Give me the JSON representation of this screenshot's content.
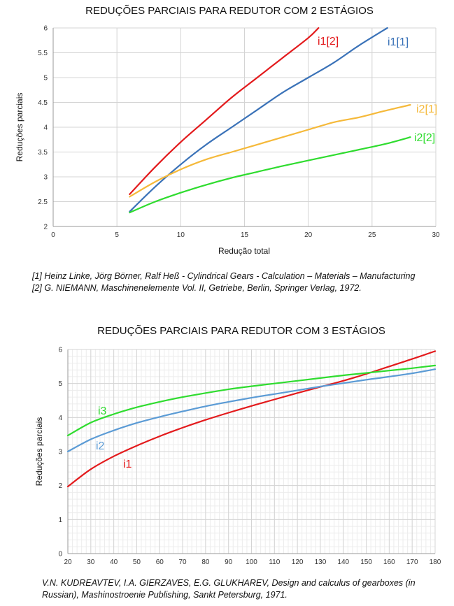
{
  "chart_data": [
    {
      "type": "line",
      "title": "REDUÇÕES PARCIAIS PARA REDUTOR COM 2 ESTÁGIOS",
      "xlabel": "Redução total",
      "ylabel": "Reduções parciais",
      "xlim": [
        0,
        30
      ],
      "ylim": [
        2,
        6
      ],
      "x_ticks": [
        0,
        5,
        10,
        15,
        20,
        25,
        30
      ],
      "y_ticks": [
        2,
        2.5,
        3,
        3.5,
        4,
        4.5,
        5,
        5.5,
        6
      ],
      "grid": "major",
      "series": [
        {
          "name": "i1[2]",
          "color": "#e31a1c",
          "x": [
            6,
            8,
            10,
            12,
            14,
            16,
            18,
            20,
            20.8
          ],
          "y": [
            2.65,
            3.2,
            3.7,
            4.15,
            4.6,
            5.0,
            5.4,
            5.8,
            6.0
          ]
        },
        {
          "name": "i1[1]",
          "color": "#3a72b8",
          "x": [
            6,
            8,
            10,
            12,
            14,
            16,
            18,
            20,
            22,
            24,
            26.2
          ],
          "y": [
            2.3,
            2.8,
            3.25,
            3.65,
            4.0,
            4.35,
            4.7,
            5.0,
            5.3,
            5.65,
            6.0
          ]
        },
        {
          "name": "i2[1]",
          "color": "#f5b93a",
          "x": [
            6,
            8,
            10,
            12,
            14,
            16,
            18,
            20,
            22,
            24,
            26,
            28
          ],
          "y": [
            2.6,
            2.9,
            3.15,
            3.35,
            3.5,
            3.65,
            3.8,
            3.95,
            4.1,
            4.2,
            4.33,
            4.45
          ]
        },
        {
          "name": "i2[2]",
          "color": "#2fdc2f",
          "x": [
            6,
            8,
            10,
            12,
            14,
            16,
            18,
            20,
            22,
            24,
            26,
            28
          ],
          "y": [
            2.28,
            2.5,
            2.68,
            2.84,
            2.98,
            3.1,
            3.22,
            3.33,
            3.44,
            3.55,
            3.66,
            3.8
          ]
        }
      ],
      "references": [
        "[1] Heinz Linke, Jörg Börner, Ralf Heß - Cylindrical Gears - Calculation – Materials – Manufacturing",
        "[2] G. NIEMANN, Maschinenelemente Vol. II, Getriebe, Berlin, Springer Verlag, 1972."
      ]
    },
    {
      "type": "line",
      "title": "REDUÇÕES PARCIAIS PARA REDUTOR COM 3 ESTÁGIOS",
      "xlabel": "",
      "ylabel": "Reduções parciais",
      "xlim": [
        20,
        180
      ],
      "ylim": [
        0,
        6
      ],
      "x_ticks": [
        20,
        30,
        40,
        50,
        60,
        70,
        80,
        90,
        100,
        110,
        120,
        130,
        140,
        150,
        160,
        170,
        180
      ],
      "y_ticks": [
        0,
        1,
        2,
        3,
        4,
        5,
        6
      ],
      "grid": "major+minor",
      "series": [
        {
          "name": "i1",
          "color": "#e31a1c",
          "x": [
            20,
            30,
            40,
            50,
            60,
            70,
            80,
            90,
            100,
            110,
            120,
            130,
            140,
            150,
            160,
            170,
            180
          ],
          "y": [
            1.97,
            2.48,
            2.86,
            3.17,
            3.45,
            3.7,
            3.93,
            4.14,
            4.34,
            4.53,
            4.72,
            4.9,
            5.08,
            5.28,
            5.5,
            5.72,
            5.95
          ]
        },
        {
          "name": "i2",
          "color": "#5b9bd5",
          "x": [
            20,
            30,
            40,
            50,
            60,
            70,
            80,
            90,
            100,
            110,
            120,
            130,
            140,
            150,
            160,
            170,
            180
          ],
          "y": [
            3.0,
            3.36,
            3.62,
            3.84,
            4.02,
            4.18,
            4.33,
            4.46,
            4.58,
            4.69,
            4.8,
            4.91,
            5.01,
            5.11,
            5.2,
            5.3,
            5.42
          ]
        },
        {
          "name": "i3",
          "color": "#2fdc2f",
          "x": [
            20,
            30,
            40,
            50,
            60,
            70,
            80,
            90,
            100,
            110,
            120,
            130,
            140,
            150,
            160,
            170,
            180
          ],
          "y": [
            3.47,
            3.85,
            4.1,
            4.3,
            4.46,
            4.6,
            4.72,
            4.83,
            4.92,
            5.0,
            5.08,
            5.16,
            5.24,
            5.31,
            5.38,
            5.45,
            5.53
          ]
        }
      ],
      "references": [
        "V.N. KUDREAVTEV, I.A. GIERZAVES, E.G. GLUKHAREV, Design and calculus of gearboxes (in Russian), Mashinostroenie Publishing, Sankt Petersburg, 1971."
      ]
    }
  ]
}
